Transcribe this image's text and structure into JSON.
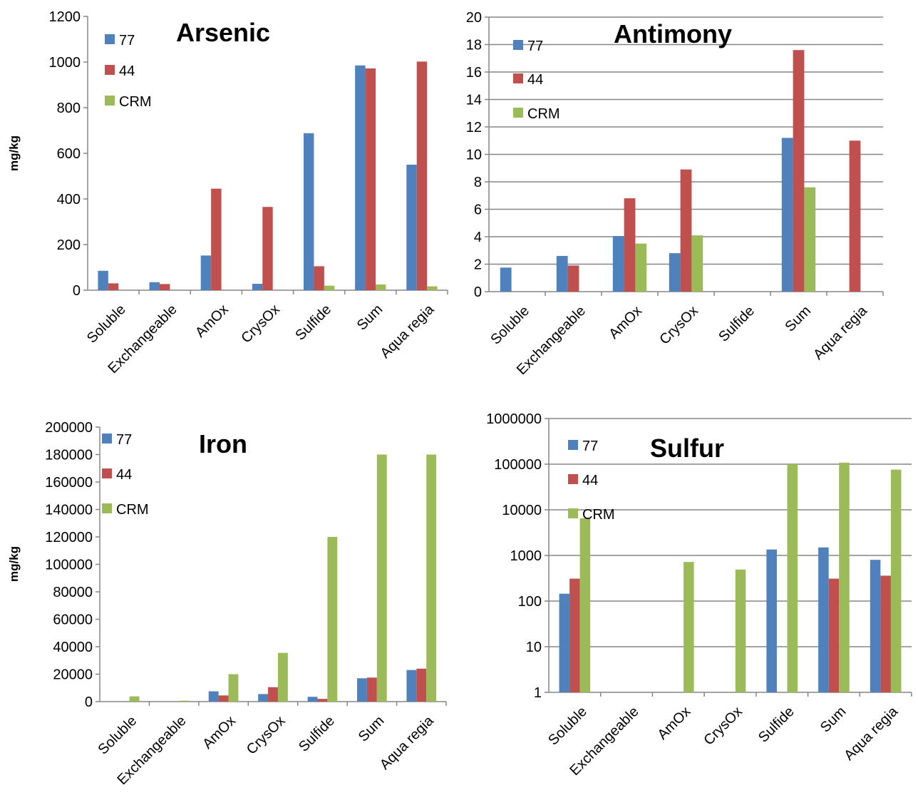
{
  "colors": {
    "s77": "#4F81BD",
    "s44": "#C0504D",
    "crm": "#9BBB59",
    "grid": "#868686",
    "axis": "#868686"
  },
  "chart_data": [
    {
      "type": "bar",
      "title": "Arsenic",
      "ylabel": "mg/kg",
      "xlabel": "",
      "scale": "linear",
      "ylim": [
        0,
        1200
      ],
      "yticks": [
        "0",
        "200",
        "400",
        "600",
        "800",
        "1000",
        "1200"
      ],
      "grid": false,
      "legend_position": "top-left",
      "categories": [
        "Soluble",
        "Exchangeable",
        "AmOx",
        "CrysOx",
        "Sulfide",
        "Sum",
        "Aqua regia"
      ],
      "series": [
        {
          "name": "77",
          "values": [
            85,
            35,
            152,
            28,
            688,
            985,
            550
          ]
        },
        {
          "name": "44",
          "values": [
            30,
            27,
            445,
            365,
            105,
            972,
            1002
          ]
        },
        {
          "name": "CRM",
          "values": [
            0,
            0,
            0,
            0,
            20,
            25,
            17
          ]
        }
      ]
    },
    {
      "type": "bar",
      "title": "Antimony",
      "ylabel": "",
      "xlabel": "",
      "scale": "linear",
      "ylim": [
        0,
        20
      ],
      "yticks": [
        "0",
        "2",
        "4",
        "6",
        "8",
        "10",
        "12",
        "14",
        "16",
        "18",
        "20"
      ],
      "grid": true,
      "legend_position": "top-left",
      "categories": [
        "Soluble",
        "Exchangeable",
        "AmOx",
        "CrysOx",
        "Sulfide",
        "Sum",
        "Aqua regia"
      ],
      "series": [
        {
          "name": "77",
          "values": [
            1.75,
            2.6,
            4.05,
            2.8,
            0,
            11.2,
            0
          ]
        },
        {
          "name": "44",
          "values": [
            0,
            1.9,
            6.8,
            8.9,
            0,
            17.6,
            11.0
          ]
        },
        {
          "name": "CRM",
          "values": [
            0,
            0,
            3.5,
            4.1,
            0,
            7.6,
            0
          ]
        }
      ]
    },
    {
      "type": "bar",
      "title": "Iron",
      "ylabel": "mg/kg",
      "xlabel": "",
      "scale": "linear",
      "ylim": [
        0,
        200000
      ],
      "yticks": [
        "0",
        "20000",
        "40000",
        "60000",
        "80000",
        "100000",
        "120000",
        "140000",
        "160000",
        "180000",
        "200000"
      ],
      "grid": false,
      "legend_position": "top-left",
      "categories": [
        "Soluble",
        "Exchangeable",
        "AmOx",
        "CrysOx",
        "Sulfide",
        "Sum",
        "Aqua regia"
      ],
      "series": [
        {
          "name": "77",
          "values": [
            0,
            0,
            7500,
            5500,
            3500,
            17000,
            23000
          ]
        },
        {
          "name": "44",
          "values": [
            0,
            0,
            4500,
            10500,
            2000,
            17500,
            24000
          ]
        },
        {
          "name": "CRM",
          "values": [
            3800,
            700,
            20000,
            35500,
            120000,
            180000,
            180000
          ]
        }
      ]
    },
    {
      "type": "bar",
      "title": "Sulfur",
      "ylabel": "",
      "xlabel": "",
      "scale": "log",
      "ylim": [
        1,
        1000000
      ],
      "yticks": [
        "1",
        "10",
        "100",
        "1000",
        "10000",
        "100000",
        "1000000"
      ],
      "grid": true,
      "legend_position": "top-left",
      "categories": [
        "Soluble",
        "Exchangeable",
        "AmOx",
        "CrysOx",
        "Sulfide",
        "Sum",
        "Aqua regia"
      ],
      "series": [
        {
          "name": "77",
          "values": [
            145,
            null,
            null,
            null,
            1350,
            1500,
            800
          ]
        },
        {
          "name": "44",
          "values": [
            310,
            null,
            null,
            null,
            null,
            310,
            360
          ]
        },
        {
          "name": "CRM",
          "values": [
            6500,
            null,
            720,
            490,
            100000,
            108000,
            76000
          ]
        }
      ]
    }
  ]
}
